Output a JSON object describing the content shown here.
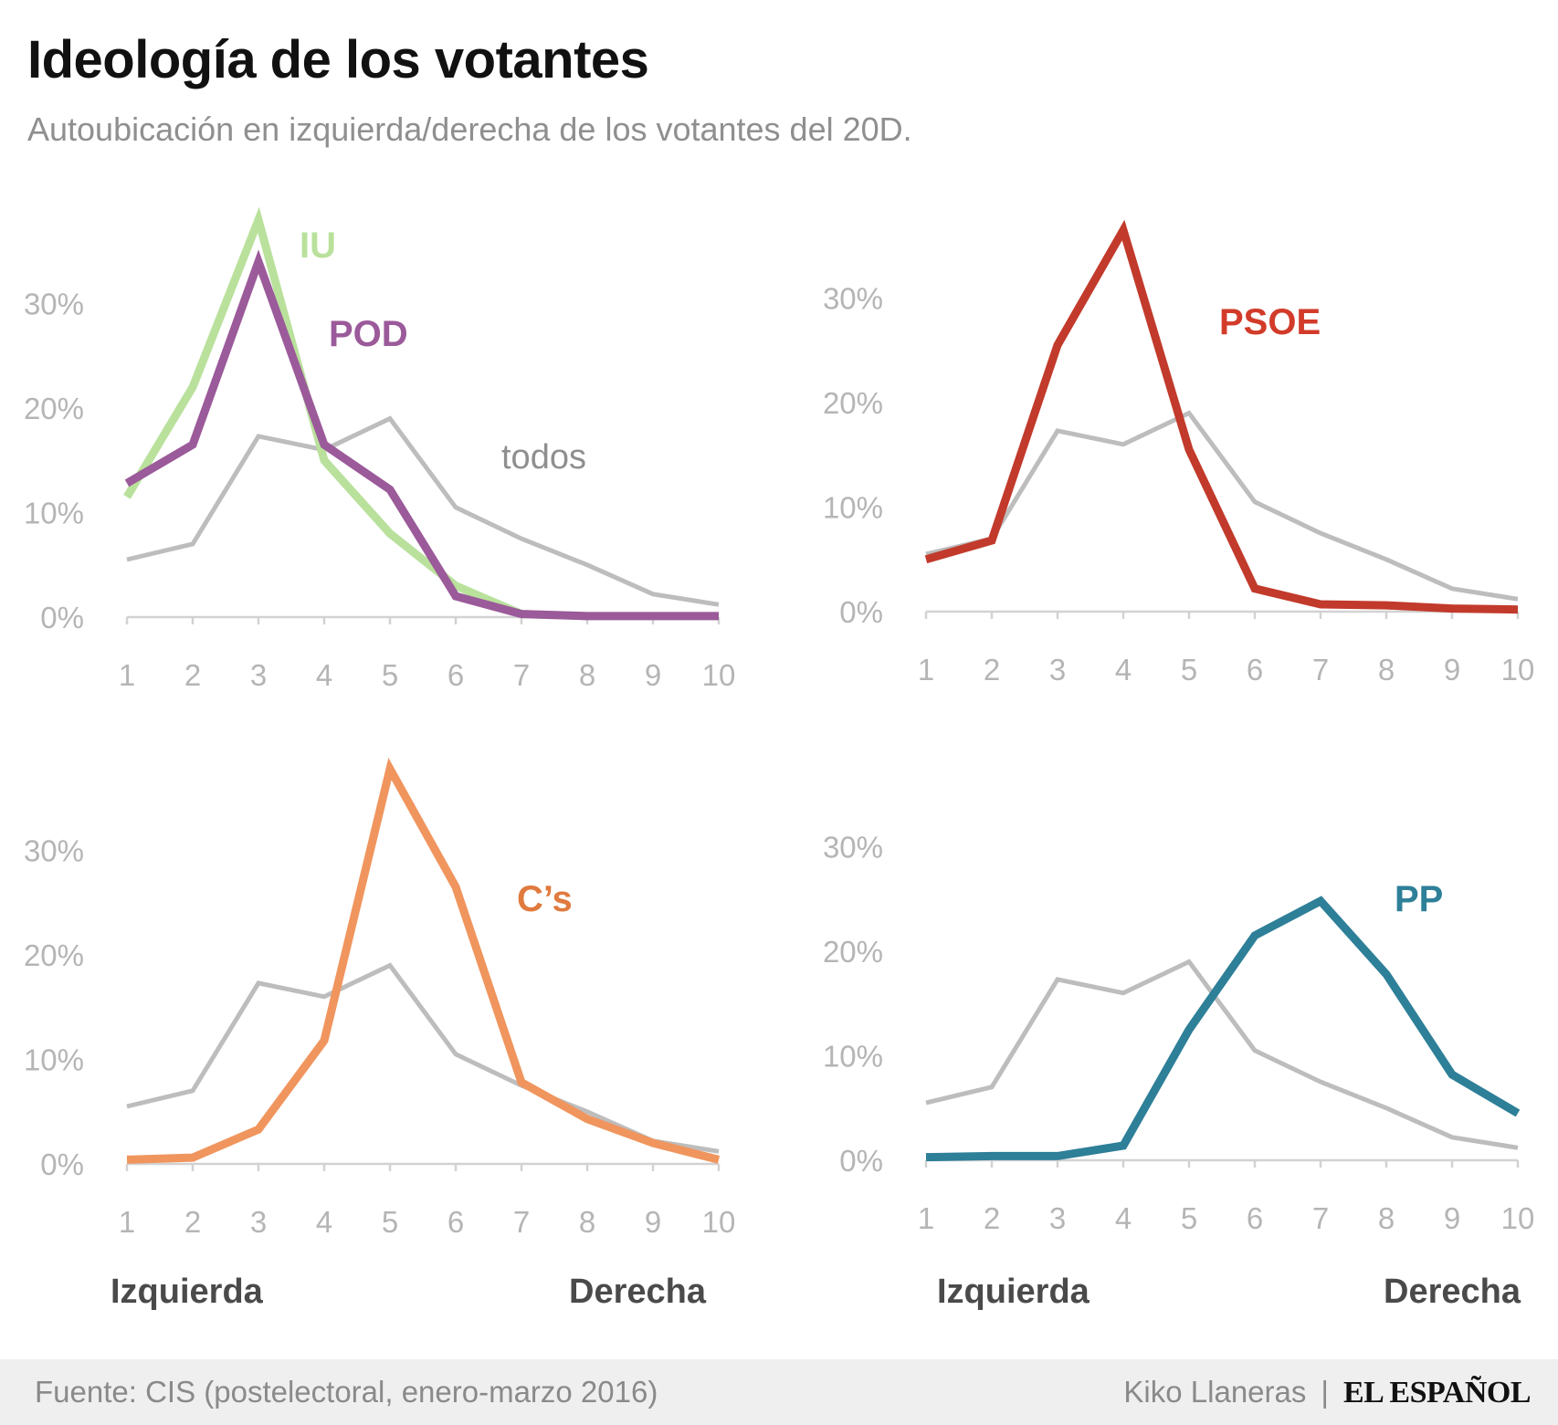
{
  "header": {
    "title": "Ideología de los votantes",
    "subtitle": "Autoubicación en izquierda/derecha de los votantes del 20D."
  },
  "colors": {
    "todos": "#bdbdbd",
    "IU": "#b9e19c",
    "POD": "#9b5a9a",
    "PSOE": "#c23a2b",
    "Cs": "#f0955e",
    "PP": "#2e7f98",
    "axis": "#d2d2d2",
    "tick_text": "#b5b5b5"
  },
  "series_label_colors": {
    "IU": "#b9e19c",
    "POD": "#9b5a9a",
    "PSOE": "#d23b2a",
    "Cs": "#e07a3e",
    "PP": "#2e7f98"
  },
  "axis_end_labels": {
    "left": "Izquierda",
    "right": "Derecha"
  },
  "chart_data": [
    {
      "type": "line",
      "x": [
        1,
        2,
        3,
        4,
        5,
        6,
        7,
        8,
        9,
        10
      ],
      "ylim": [
        0,
        38
      ],
      "yticks": [
        "0%",
        "10%",
        "20%",
        "30%"
      ],
      "xticks": [
        "1",
        "2",
        "3",
        "4",
        "5",
        "6",
        "7",
        "8",
        "9",
        "10"
      ],
      "series": [
        {
          "name": "todos",
          "key": "todos",
          "values": [
            5.5,
            7,
            17.3,
            16,
            19,
            10.5,
            7.5,
            5,
            2.2,
            1.2
          ]
        },
        {
          "name": "IU",
          "key": "IU",
          "values": [
            11.5,
            22,
            38,
            15,
            8,
            3,
            0.3,
            0.1,
            0.1,
            0.1
          ]
        },
        {
          "name": "POD",
          "key": "POD",
          "values": [
            12.8,
            16.5,
            34,
            16.5,
            12.2,
            2,
            0.3,
            0.1,
            0.1,
            0.1
          ]
        }
      ]
    },
    {
      "type": "line",
      "x": [
        1,
        2,
        3,
        4,
        5,
        6,
        7,
        8,
        9,
        10
      ],
      "ylim": [
        0,
        38
      ],
      "yticks": [
        "0%",
        "10%",
        "20%",
        "30%"
      ],
      "xticks": [
        "1",
        "2",
        "3",
        "4",
        "5",
        "6",
        "7",
        "8",
        "9",
        "10"
      ],
      "series": [
        {
          "name": "todos",
          "key": "todos",
          "values": [
            5.5,
            7,
            17.3,
            16,
            19,
            10.5,
            7.5,
            5,
            2.2,
            1.2
          ]
        },
        {
          "name": "PSOE",
          "key": "PSOE",
          "values": [
            5,
            6.8,
            25.5,
            36.5,
            15.5,
            2.2,
            0.7,
            0.6,
            0.3,
            0.2
          ]
        }
      ]
    },
    {
      "type": "line",
      "x": [
        1,
        2,
        3,
        4,
        5,
        6,
        7,
        8,
        9,
        10
      ],
      "ylim": [
        0,
        38
      ],
      "yticks": [
        "0%",
        "10%",
        "20%",
        "30%"
      ],
      "xticks": [
        "1",
        "2",
        "3",
        "4",
        "5",
        "6",
        "7",
        "8",
        "9",
        "10"
      ],
      "series": [
        {
          "name": "todos",
          "key": "todos",
          "values": [
            5.5,
            7,
            17.3,
            16,
            19,
            10.5,
            7.5,
            5,
            2.2,
            1.2
          ]
        },
        {
          "name": "C’s",
          "key": "Cs",
          "values": [
            0.4,
            0.6,
            3.3,
            11.8,
            37.8,
            26.5,
            7.8,
            4.3,
            2,
            0.4
          ]
        }
      ]
    },
    {
      "type": "line",
      "x": [
        1,
        2,
        3,
        4,
        5,
        6,
        7,
        8,
        9,
        10
      ],
      "ylim": [
        0,
        38
      ],
      "yticks": [
        "0%",
        "10%",
        "20%",
        "30%"
      ],
      "xticks": [
        "1",
        "2",
        "3",
        "4",
        "5",
        "6",
        "7",
        "8",
        "9",
        "10"
      ],
      "series": [
        {
          "name": "todos",
          "key": "todos",
          "values": [
            5.5,
            7,
            17.3,
            16,
            19,
            10.5,
            7.5,
            5,
            2.2,
            1.2
          ]
        },
        {
          "name": "PP",
          "key": "PP",
          "values": [
            0.3,
            0.4,
            0.4,
            1.4,
            12.5,
            21.5,
            24.8,
            17.8,
            8.2,
            4.5
          ]
        }
      ]
    }
  ],
  "footer": {
    "source": "Fuente: CIS (postelectoral, enero-marzo 2016)",
    "author": "Kiko Llaneras",
    "separator": "|",
    "logo": "EL ESPAÑOL"
  }
}
